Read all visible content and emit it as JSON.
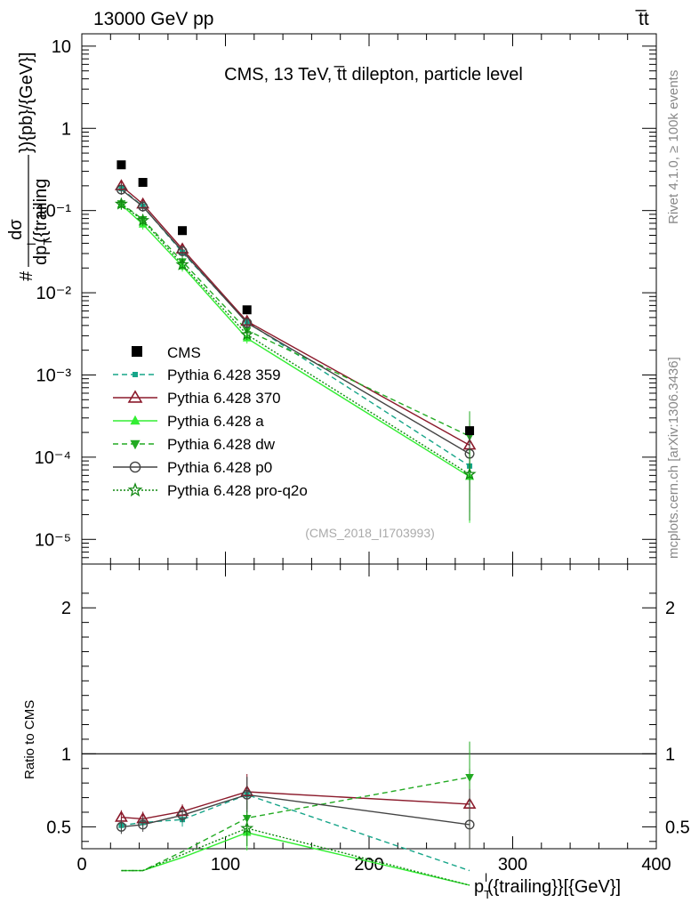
{
  "header": {
    "left": "13000 GeV pp",
    "right": "t̅t"
  },
  "side_labels": {
    "rivet": "Rivet 4.1.0, ≥ 100k events",
    "mcplots": "mcplots.cern.ch [arXiv:1306.3436]"
  },
  "chart_data": {
    "type": "scatter",
    "title": "CMS, 13 TeV, t̅t dilepton, particle level",
    "analysis_tag": "(CMS_2018_I1703993)",
    "ylabel_main": {
      "prefix": "#",
      "numerator": "dσ",
      "denominator": "dp",
      "denominator_sub": "T",
      "denominator_sup": "l",
      "denominator_rest": "({trailing",
      "suffix": "}){pb}/{GeV}]"
    },
    "ylabel_ratio": "Ratio to CMS",
    "xlabel": {
      "p": "p",
      "sub": "T",
      "sup": "l",
      "rest": "({trailing}}[{GeV}]"
    },
    "xlim": [
      0,
      400
    ],
    "ylim_main_log10": [
      -5.3,
      1.15
    ],
    "ylim_ratio": [
      0.35,
      2.3
    ],
    "x_ticks": [
      "0",
      "100",
      "200",
      "300",
      "400"
    ],
    "y_ticks_main": [
      "10",
      "1",
      "10⁻¹",
      "10⁻²",
      "10⁻³",
      "10⁻⁴",
      "10⁻⁵"
    ],
    "y_ticks_ratio": [
      "0.5",
      "1",
      "2"
    ],
    "x": [
      27.5,
      42.5,
      70,
      115,
      270
    ],
    "data": {
      "name": "CMS",
      "values": [
        0.36,
        0.22,
        0.057,
        0.0062,
        0.00021
      ]
    },
    "series": [
      {
        "name": "Pythia 6.428 359",
        "color": "#17a589",
        "marker": "square-small",
        "line": "dashed",
        "values": [
          0.185,
          0.113,
          0.031,
          0.0044,
          7.8e-05
        ],
        "ratio": [
          0.51,
          0.53,
          0.55,
          0.72,
          0.2
        ]
      },
      {
        "name": "Pythia 6.428 370",
        "color": "#8b1a2b",
        "marker": "triangle-open",
        "line": "solid",
        "values": [
          0.2,
          0.12,
          0.034,
          0.0045,
          0.00014
        ],
        "ratio": [
          0.565,
          0.555,
          0.605,
          0.74,
          0.655
        ]
      },
      {
        "name": "Pythia 6.428 a",
        "color": "#33ee33",
        "marker": "triangle-filled",
        "line": "solid",
        "values": [
          0.118,
          0.068,
          0.021,
          0.0028,
          5.8e-05
        ],
        "ratio": [
          0.2,
          0.2,
          0.29,
          0.46,
          0.1
        ]
      },
      {
        "name": "Pythia 6.428 dw",
        "color": "#22aa22",
        "marker": "triangle-down",
        "line": "dashed",
        "values": [
          0.122,
          0.078,
          0.024,
          0.0035,
          0.00018
        ],
        "ratio": [
          0.2,
          0.2,
          0.33,
          0.56,
          0.84
        ]
      },
      {
        "name": "Pythia 6.428 p0",
        "color": "#444444",
        "marker": "circle-open",
        "line": "solid",
        "values": [
          0.18,
          0.112,
          0.032,
          0.0043,
          0.00011
        ],
        "ratio": [
          0.5,
          0.515,
          0.58,
          0.72,
          0.515
        ]
      },
      {
        "name": "Pythia 6.428 pro-q2o",
        "color": "#118811",
        "marker": "star-open",
        "line": "dotted",
        "values": [
          0.12,
          0.076,
          0.022,
          0.0031,
          6.2e-05
        ],
        "ratio": [
          0.2,
          0.2,
          0.31,
          0.49,
          0.1
        ]
      }
    ]
  }
}
